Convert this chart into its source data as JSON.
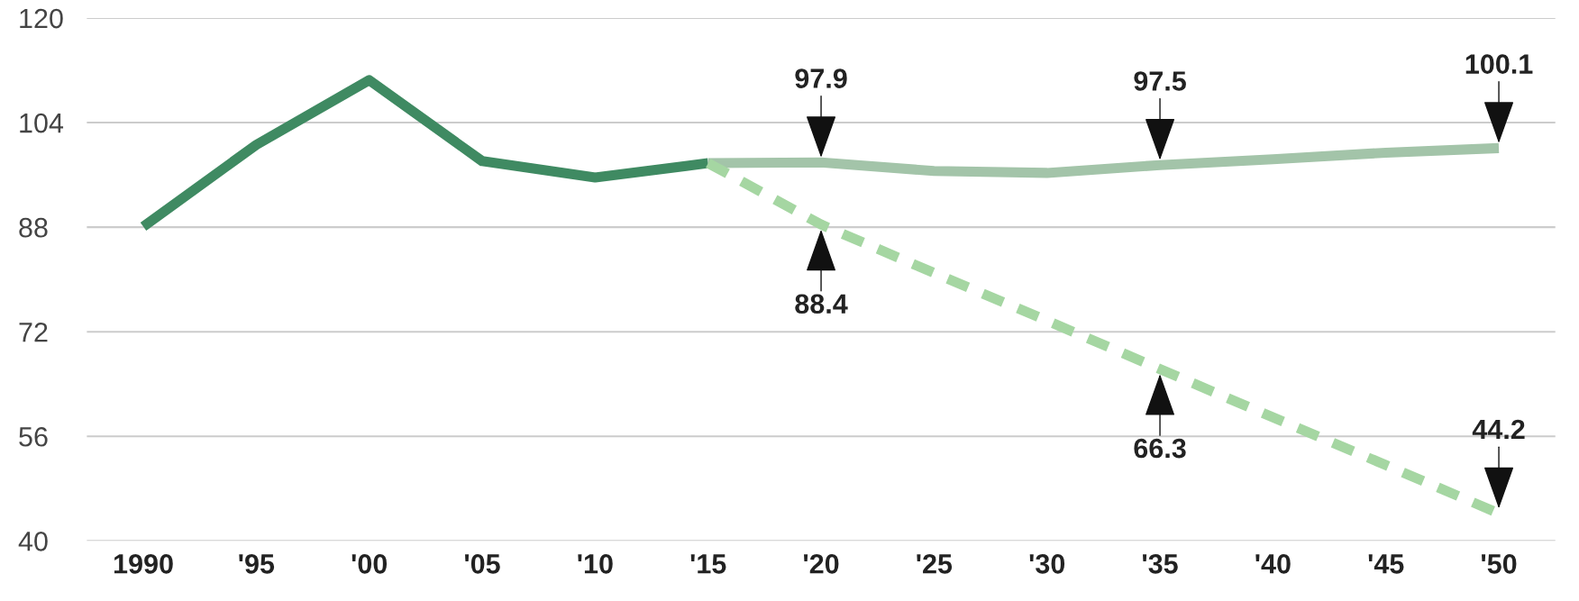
{
  "chart_data": {
    "type": "line",
    "series": [
      {
        "color": "#3f8a62",
        "line_style": "solid",
        "x": [
          1990,
          1995,
          2000,
          2005,
          2010,
          2015
        ],
        "values": [
          88.1,
          100.6,
          110.5,
          98.1,
          95.6,
          97.8
        ]
      },
      {
        "color": "#a3c4a9",
        "line_style": "solid",
        "x": [
          2015,
          2020,
          2025,
          2030,
          2035,
          2040,
          2045,
          2050
        ],
        "values": [
          97.8,
          97.9,
          96.6,
          96.3,
          97.5,
          98.4,
          99.4,
          100.1
        ]
      },
      {
        "color": "#a5d6a2",
        "line_style": "dashed",
        "x": [
          2015,
          2020,
          2025,
          2030,
          2035,
          2040,
          2045,
          2050
        ],
        "values": [
          97.8,
          88.4,
          81.0,
          73.7,
          66.3,
          58.9,
          51.6,
          44.2
        ]
      }
    ],
    "xlim": [
      1987.5,
      2052.5
    ],
    "xticks": [
      1990,
      {
        "value": 1995,
        "label": "'95"
      },
      {
        "value": 2000,
        "label": "'00"
      },
      {
        "value": 2005,
        "label": "'05"
      },
      {
        "value": 2010,
        "label": "'10"
      },
      {
        "value": 2015,
        "label": "'15"
      },
      {
        "value": 2020,
        "label": "'20"
      },
      {
        "value": 2025,
        "label": "'25"
      },
      {
        "value": 2030,
        "label": "'30"
      },
      {
        "value": 2035,
        "label": "'35"
      },
      {
        "value": 2040,
        "label": "'40"
      },
      {
        "value": 2045,
        "label": "'45"
      },
      {
        "value": 2050,
        "label": "'50"
      }
    ],
    "ylim": [
      40,
      120
    ],
    "yticks": [
      40,
      56,
      72,
      88,
      104,
      120
    ],
    "grid": "y",
    "legend": false,
    "marker": "none",
    "annotations": [
      {
        "text": "97.9",
        "x": 2020,
        "y": 97.9
      },
      {
        "text": "97.5",
        "x": 2035,
        "y": 97.5
      },
      {
        "text": "100.1",
        "x": 2050,
        "y": 100.1
      },
      {
        "text": "88.4",
        "x": 2020,
        "y": 88.4
      },
      {
        "text": "66.3",
        "x": 2035,
        "y": 66.3
      },
      {
        "text": "44.2",
        "x": 2050,
        "y": 44.2
      }
    ]
  }
}
